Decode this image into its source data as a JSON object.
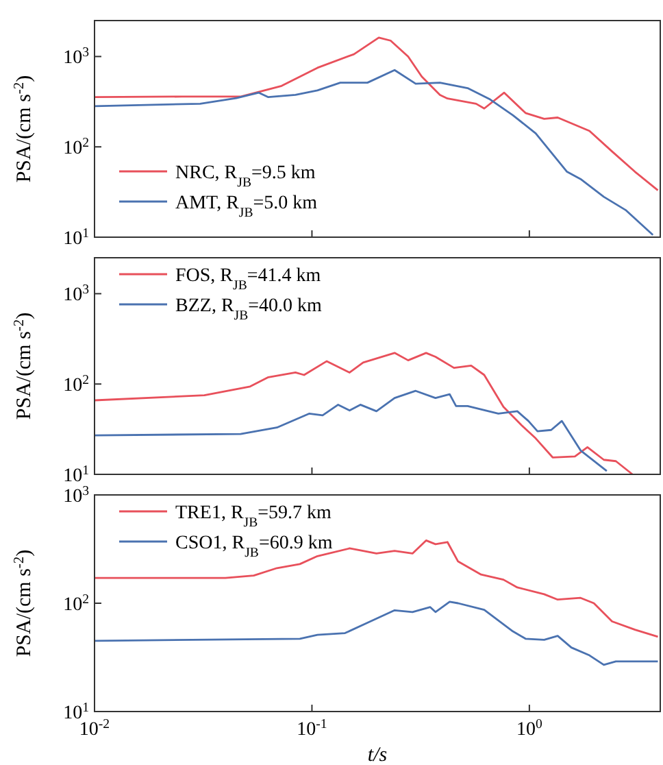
{
  "chart_data": [
    {
      "type": "line",
      "log": "xy",
      "xlim": [
        0.01,
        4
      ],
      "ylim": [
        10,
        2500
      ],
      "xticks": [
        {
          "value": 0.01,
          "label": null
        },
        {
          "value": 0.1,
          "label": null
        },
        {
          "value": 1,
          "label": null
        }
      ],
      "yticks": [
        {
          "value": 10,
          "label": "10$^{1}$"
        },
        {
          "value": 100,
          "label": "10$^{2}$"
        },
        {
          "value": 1000,
          "label": "10$^{3}$"
        }
      ],
      "tick_labels": "y",
      "ylabel": "PSA/(cm s$^{-2}$)",
      "legend": "bottom left",
      "grid": false,
      "series": [
        {
          "name": "NRC, R$_{JB}$=9.5 km",
          "color": "#e8505b",
          "x": [
            0.01,
            0.0253,
            0.0471,
            0.0725,
            0.106,
            0.156,
            0.203,
            0.23,
            0.277,
            0.32,
            0.388,
            0.42,
            0.569,
            0.62,
            0.766,
            0.96,
            1.17,
            1.35,
            1.89,
            2.4,
            3.06,
            3.9
          ],
          "values": [
            355,
            360,
            360,
            473,
            750,
            1060,
            1620,
            1500,
            1000,
            600,
            375,
            343,
            300,
            266,
            398,
            237,
            204,
            211,
            150,
            89,
            53,
            33
          ]
        },
        {
          "name": "AMT, R$_{JB}$=5.0 km",
          "color": "#4a72b0",
          "x": [
            0.01,
            0.0306,
            0.0449,
            0.057,
            0.063,
            0.084,
            0.106,
            0.135,
            0.18,
            0.24,
            0.3,
            0.388,
            0.52,
            0.66,
            0.84,
            1.07,
            1.49,
            1.72,
            2.2,
            2.77,
            3.7
          ],
          "values": [
            282,
            300,
            347,
            398,
            355,
            376,
            422,
            513,
            513,
            708,
            500,
            513,
            447,
            335,
            224,
            141,
            53,
            44,
            28,
            20,
            10.6
          ]
        }
      ]
    },
    {
      "type": "line",
      "log": "xy",
      "xlim": [
        0.01,
        4
      ],
      "ylim": [
        10,
        2500
      ],
      "xticks": [
        {
          "value": 0.01,
          "label": null
        },
        {
          "value": 0.1,
          "label": null
        },
        {
          "value": 1,
          "label": null
        }
      ],
      "yticks": [
        {
          "value": 10,
          "label": "10$^{1}$"
        },
        {
          "value": 100,
          "label": "10$^{2}$"
        },
        {
          "value": 1000,
          "label": "10$^{3}$"
        }
      ],
      "tick_labels": "y",
      "ylabel": "PSA/(cm s$^{-2}$)",
      "legend": "top left",
      "grid": false,
      "series": [
        {
          "name": "FOS, R$_{JB}$=41.4 km",
          "color": "#e8505b",
          "x": [
            0.01,
            0.032,
            0.052,
            0.063,
            0.084,
            0.092,
            0.117,
            0.149,
            0.172,
            0.24,
            0.277,
            0.335,
            0.37,
            0.45,
            0.54,
            0.62,
            0.76,
            0.92,
            1.07,
            1.28,
            1.62,
            1.85,
            2.2,
            2.5,
            2.98
          ],
          "values": [
            66,
            75,
            94,
            119,
            134,
            126,
            179,
            134,
            173,
            221,
            183,
            221,
            200,
            151,
            160,
            126,
            56,
            35,
            25,
            15.4,
            15.8,
            20,
            14.5,
            14,
            10
          ]
        },
        {
          "name": "BZZ, R$_{JB}$=40.0 km",
          "color": "#4a72b0",
          "x": [
            0.01,
            0.047,
            0.069,
            0.097,
            0.112,
            0.132,
            0.149,
            0.167,
            0.198,
            0.24,
            0.3,
            0.37,
            0.43,
            0.46,
            0.52,
            0.72,
            0.88,
            0.99,
            1.09,
            1.26,
            1.41,
            1.72,
            2.27
          ],
          "values": [
            27,
            28,
            33,
            47,
            45,
            59,
            51,
            59,
            50,
            70,
            84,
            70,
            77,
            57,
            57,
            47,
            50,
            39,
            30,
            31,
            39,
            18.4,
            10.9
          ]
        }
      ]
    },
    {
      "type": "line",
      "log": "xy",
      "xlim": [
        0.01,
        4
      ],
      "ylim": [
        10,
        1000
      ],
      "xticks": [
        {
          "value": 0.01,
          "label": "10$^{-2}$"
        },
        {
          "value": 0.1,
          "label": "10$^{-1}$"
        },
        {
          "value": 1,
          "label": "10$^{0}$"
        }
      ],
      "yticks": [
        {
          "value": 10,
          "label": "10$^{1}$"
        },
        {
          "value": 100,
          "label": "10$^{2}$"
        },
        {
          "value": 1000,
          "label": "10$^{3}$"
        }
      ],
      "xlabel": "t/s",
      "ylabel": "PSA/(cm s$^{-2}$)",
      "legend": "top left",
      "grid": false,
      "series": [
        {
          "name": "TRE1, R$_{JB}$=59.7 km",
          "color": "#e8505b",
          "x": [
            0.01,
            0.04,
            0.054,
            0.069,
            0.088,
            0.106,
            0.149,
            0.172,
            0.198,
            0.24,
            0.29,
            0.335,
            0.37,
            0.42,
            0.47,
            0.6,
            0.76,
            0.88,
            1.17,
            1.35,
            1.72,
            1.98,
            2.4,
            3.06,
            3.9
          ],
          "values": [
            171,
            171,
            180,
            211,
            230,
            272,
            321,
            304,
            288,
            304,
            288,
            380,
            351,
            367,
            243,
            184,
            165,
            140,
            121,
            108,
            112,
            100,
            68,
            57,
            49
          ]
        },
        {
          "name": "CSO1, R$_{JB}$=60.9 km",
          "color": "#4a72b0",
          "x": [
            0.01,
            0.088,
            0.106,
            0.142,
            0.18,
            0.24,
            0.29,
            0.35,
            0.37,
            0.43,
            0.47,
            0.62,
            0.84,
            0.96,
            1.17,
            1.35,
            1.56,
            1.89,
            2.2,
            2.5,
            3.06,
            3.9
          ],
          "values": [
            45,
            47,
            51,
            53,
            66,
            86,
            83,
            92,
            83,
            103,
            100,
            87,
            55,
            47,
            46,
            50,
            39,
            33,
            27,
            29,
            29,
            29
          ]
        }
      ]
    }
  ]
}
